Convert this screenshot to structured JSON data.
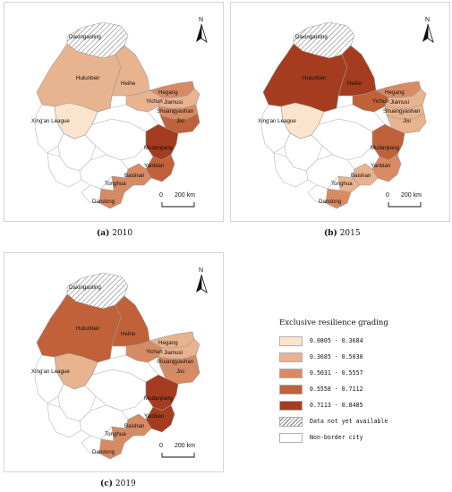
{
  "panels": [
    {
      "caption_label": "(a)",
      "caption_year": "2010",
      "fills": {
        "daxinganling": "hatch",
        "hulunbeir": "c2",
        "heihe": "c2",
        "hegang": "c3",
        "yichun": "c2",
        "jiamusi": "c2",
        "shuangyashan": "c3",
        "jixi": "c4",
        "xingan": "c1",
        "mudanjiang": "c5",
        "yanbian": "c4",
        "baishan": "c3",
        "tonghua": "c3",
        "dandong": "c3"
      }
    },
    {
      "caption_label": "(b)",
      "caption_year": "2015",
      "fills": {
        "daxinganling": "hatch",
        "hulunbeir": "c5",
        "heihe": "c5",
        "hegang": "c3",
        "yichun": "c4",
        "jiamusi": "c2",
        "shuangyashan": "c2",
        "jixi": "c2",
        "xingan": "c1",
        "mudanjiang": "c4",
        "yanbian": "c3",
        "baishan": "c2",
        "tonghua": "c2",
        "dandong": "c3"
      }
    },
    {
      "caption_label": "(c)",
      "caption_year": "2019",
      "fills": {
        "daxinganling": "hatch",
        "hulunbeir": "c4",
        "heihe": "c4",
        "hegang": "c2",
        "yichun": "c3",
        "jiamusi": "c2",
        "shuangyashan": "c3",
        "jixi": "c3",
        "xingan": "c2",
        "mudanjiang": "c5",
        "yanbian": "c5",
        "baishan": "c3",
        "tonghua": "c3",
        "dandong": "c3"
      }
    }
  ],
  "city_labels": {
    "daxinganling": "Daxinganling",
    "hulunbeir": "Hulunbeir",
    "heihe": "Heihe",
    "hegang": "Hegang",
    "yichun": "Yichun",
    "jiamusi": "Jiamusi",
    "shuangyashan": "Shuangyashan",
    "jixi": "Jixi",
    "xingan": "Xing'an League",
    "mudanjiang": "Mudanjiang",
    "yanbian": "Yanbian",
    "baishan": "Baishan",
    "tonghua": "Tonghua",
    "dandong": "Dandong"
  },
  "north_label": "N",
  "scale": {
    "zero": "0",
    "distance": "200 km"
  },
  "legend": {
    "title": "Exclusive resilience grading",
    "classes": [
      {
        "key": "c1",
        "range": "0.0805 - 0.3684",
        "color": "#fbe4cd"
      },
      {
        "key": "c2",
        "range": "0.3685 - 0.5030",
        "color": "#e8b38f"
      },
      {
        "key": "c3",
        "range": "0.5031 - 0.5557",
        "color": "#d88a63"
      },
      {
        "key": "c4",
        "range": "0.5558 - 0.7112",
        "color": "#c0613a"
      },
      {
        "key": "c5",
        "range": "0.7113 - 0.8485",
        "color": "#a53c1f"
      }
    ],
    "no_data": "Data not yet available",
    "non_border": "Non-border city"
  }
}
